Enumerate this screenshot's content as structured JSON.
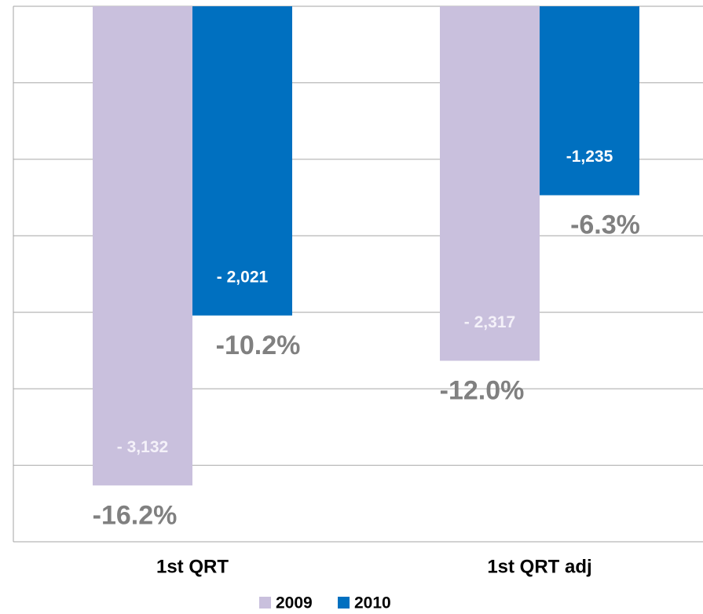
{
  "chart_data": {
    "type": "bar",
    "categories": [
      "1st QRT",
      "1st QRT adj"
    ],
    "series": [
      {
        "name": "2009",
        "color": "#c9c0dd",
        "values": [
          -3132,
          -2317
        ],
        "value_labels": [
          "- 3,132",
          "- 2,317"
        ],
        "percent_labels": [
          "-16.2%",
          "-12.0%"
        ]
      },
      {
        "name": "2010",
        "color": "#0070c0",
        "values": [
          -2021,
          -1235
        ],
        "value_labels": [
          "- 2,021",
          "-1,235"
        ],
        "percent_labels": [
          "-10.2%",
          "-6.3%"
        ]
      }
    ],
    "ylim": [
      -3500,
      0
    ],
    "yticks": [
      -3500,
      -3000,
      -2500,
      -2000,
      -1500,
      -1000,
      -500,
      0
    ],
    "grid": true
  }
}
